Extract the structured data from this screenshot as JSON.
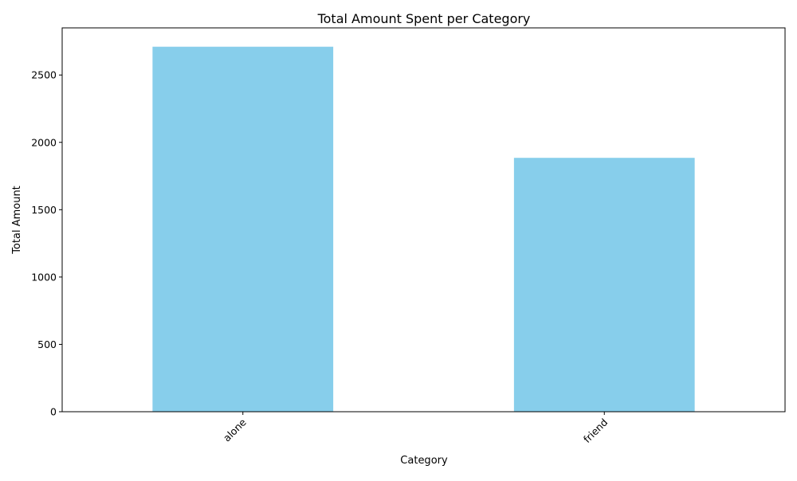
{
  "chart_data": {
    "type": "bar",
    "title": "Total Amount Spent per Category",
    "xlabel": "Category",
    "ylabel": "Total Amount",
    "categories": [
      "alone",
      "friend"
    ],
    "values": [
      2710,
      1885
    ],
    "ylim": [
      0,
      2850
    ],
    "yticks": [
      0,
      500,
      1000,
      1500,
      2000,
      2500
    ],
    "x_tick_rotation_deg": 45,
    "bar_color": "#87CEEB",
    "grid": false,
    "legend": "none"
  }
}
